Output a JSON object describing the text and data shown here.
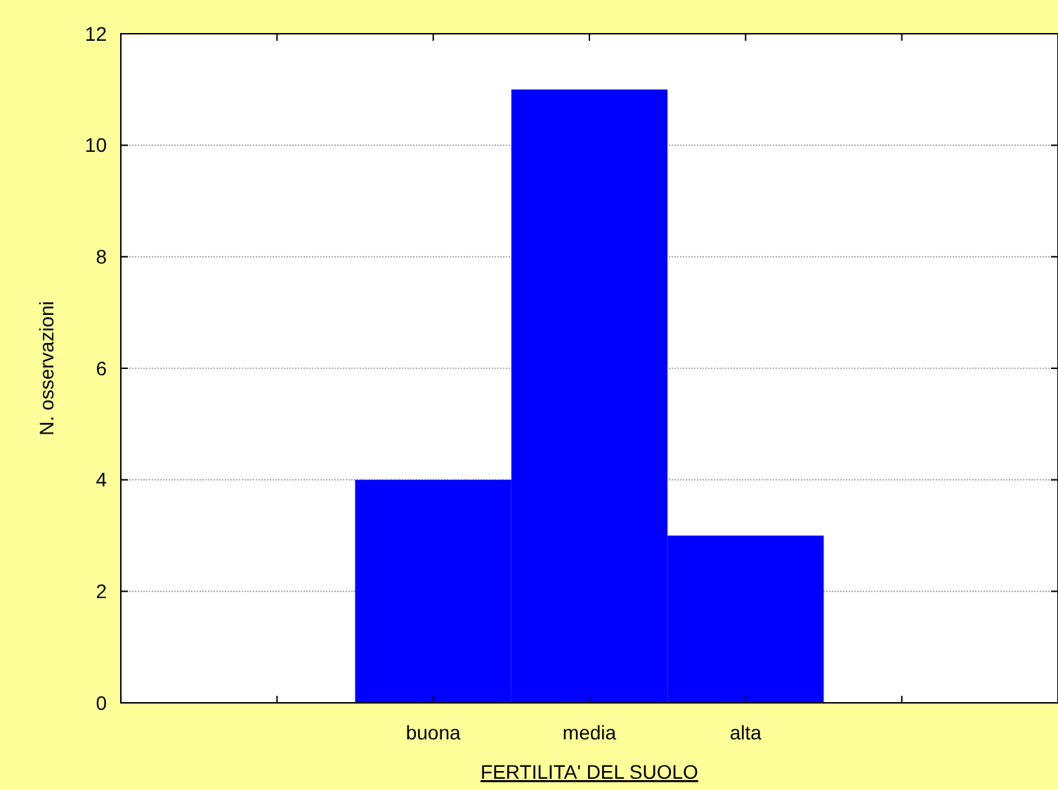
{
  "chart_data": {
    "type": "bar",
    "xlabel": "FERTILITA' DEL SUOLO",
    "ylabel": "N. osservazioni",
    "categories": [
      null,
      "buona",
      "media",
      "alta",
      null
    ],
    "values": [
      null,
      4,
      11,
      3,
      null
    ],
    "color": "#0000ff",
    "ylim": [
      0,
      12
    ],
    "yticks": [
      0,
      2,
      4,
      6,
      8,
      10,
      12
    ],
    "grid": "y"
  }
}
